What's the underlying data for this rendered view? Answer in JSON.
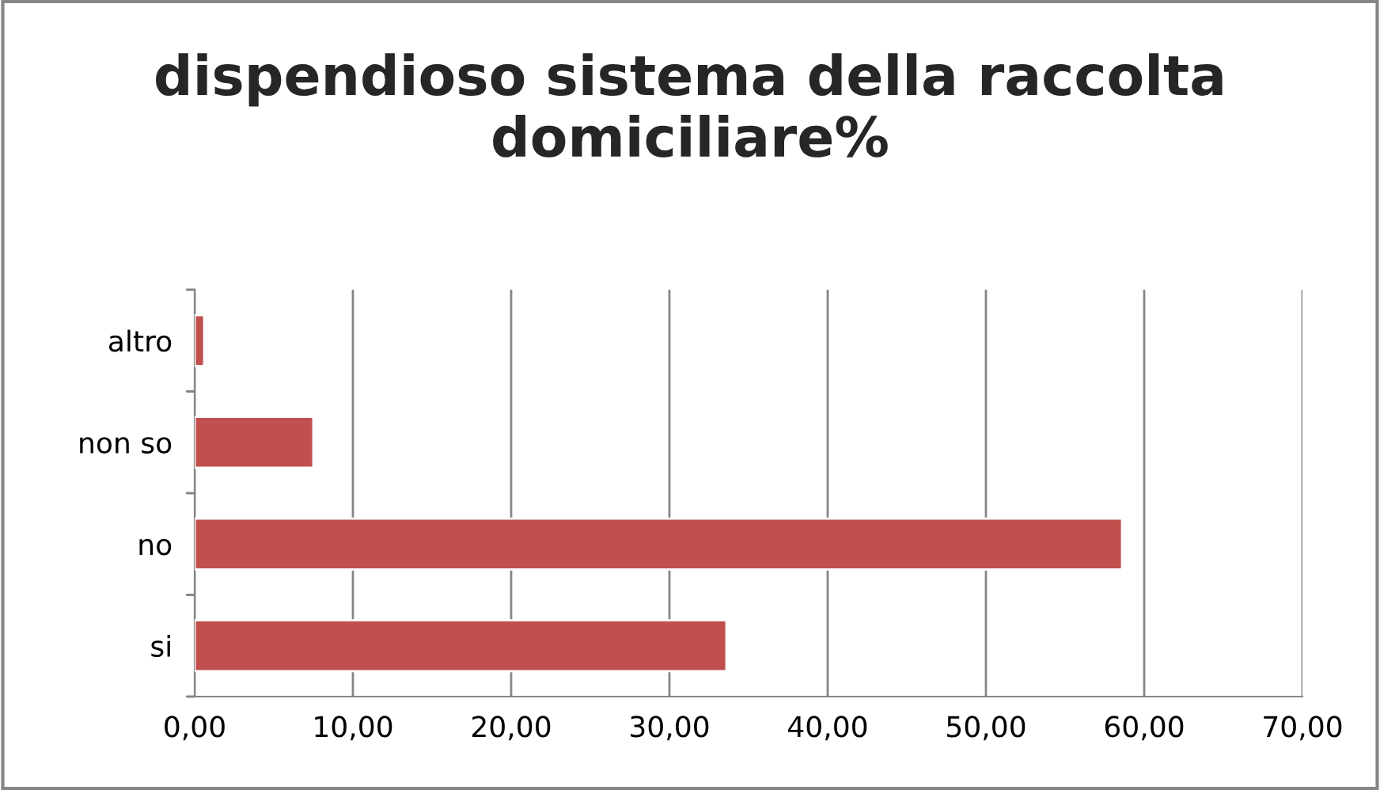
{
  "chart_data": {
    "type": "bar",
    "orientation": "horizontal",
    "title": "dispendioso sistema della raccolta domiciliare%",
    "categories": [
      "altro",
      "non so",
      "no",
      "si"
    ],
    "series": [
      {
        "color": "#c0504d",
        "values": [
          0.6,
          7.5,
          58.6,
          33.6
        ]
      }
    ],
    "xlim": [
      0,
      70
    ],
    "xticks": [
      {
        "value": 0,
        "label": "0,00"
      },
      {
        "value": 10,
        "label": "10,00"
      },
      {
        "value": 20,
        "label": "20,00"
      },
      {
        "value": 30,
        "label": "30,00"
      },
      {
        "value": 40,
        "label": "40,00"
      },
      {
        "value": 50,
        "label": "50,00"
      },
      {
        "value": 60,
        "label": "60,00"
      },
      {
        "value": 70,
        "label": "70,00"
      }
    ],
    "grid": "x",
    "legend": false
  }
}
